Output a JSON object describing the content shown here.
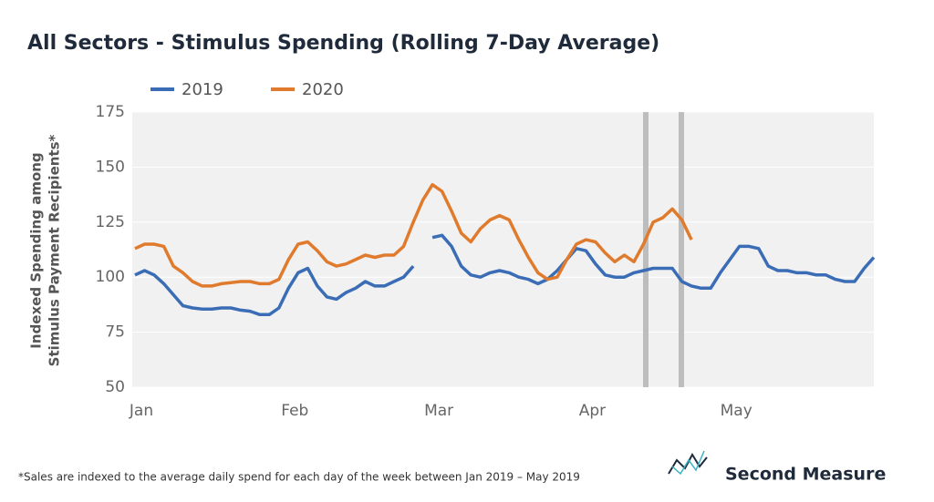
{
  "chart_data": {
    "type": "line",
    "title": "All Sectors - Stimulus Spending (Rolling 7-Day Average)",
    "y_label": [
      "Indexed Spending among",
      "Stimulus Payment Recipients*"
    ],
    "categories": [
      "Jan",
      null,
      null,
      null,
      null,
      null,
      null,
      null,
      null,
      null,
      null,
      null,
      null,
      null,
      null,
      null,
      "Feb",
      null,
      null,
      null,
      null,
      null,
      null,
      null,
      null,
      null,
      null,
      null,
      null,
      null,
      null,
      "Mar",
      null,
      null,
      null,
      null,
      null,
      null,
      null,
      null,
      null,
      null,
      null,
      null,
      null,
      null,
      null,
      "Apr",
      null,
      null,
      null,
      null,
      null,
      null,
      null,
      null,
      null,
      null,
      null,
      null,
      null,
      null,
      "May",
      null,
      null,
      null,
      null,
      null,
      null,
      null,
      null,
      null,
      null,
      null,
      null,
      null,
      null,
      null
    ],
    "series": [
      {
        "name": "2019",
        "color": "#3a6db5",
        "values": [
          101,
          103,
          101,
          97,
          92,
          87,
          86,
          85.5,
          85.5,
          86,
          86,
          85,
          84.5,
          83,
          83,
          86,
          95,
          102,
          104,
          96,
          91,
          90,
          93,
          95,
          98,
          96,
          96,
          98,
          100,
          105,
          null,
          118,
          119,
          114,
          105,
          101,
          100,
          102,
          103,
          102,
          100,
          99,
          97,
          99,
          103,
          108,
          113,
          112,
          106,
          101,
          100,
          100,
          102,
          103,
          104,
          104,
          104,
          98,
          96,
          95,
          95,
          102,
          108,
          114,
          114,
          113,
          105,
          103,
          103,
          102,
          102,
          101,
          101,
          99,
          98,
          98,
          104,
          109
        ]
      },
      {
        "name": "2020",
        "color": "#e07b2e",
        "values": [
          113,
          115,
          115,
          114,
          105,
          102,
          98,
          96,
          96,
          97,
          97.5,
          98,
          98,
          97,
          97,
          99,
          108,
          115,
          116,
          112,
          107,
          105,
          106,
          108,
          110,
          109,
          110,
          110,
          114,
          125,
          135,
          142,
          139,
          130,
          120,
          116,
          122,
          126,
          128,
          126,
          117,
          109,
          102,
          99,
          100,
          108,
          115,
          117,
          116,
          111,
          107,
          110,
          107,
          115,
          125,
          127,
          131,
          126,
          117,
          null,
          null,
          null,
          null,
          null,
          null,
          null,
          null,
          null,
          null,
          null,
          null,
          null,
          null,
          null,
          null,
          null,
          null,
          null
        ]
      }
    ],
    "ylim": [
      50,
      175
    ],
    "yticks": [
      50,
      75,
      100,
      125,
      150,
      175
    ],
    "grid": true,
    "footnote": "*Sales are indexed to the average daily spend for each day of the week between Jan 2019 – May 2019",
    "brand": "Second Measure"
  }
}
